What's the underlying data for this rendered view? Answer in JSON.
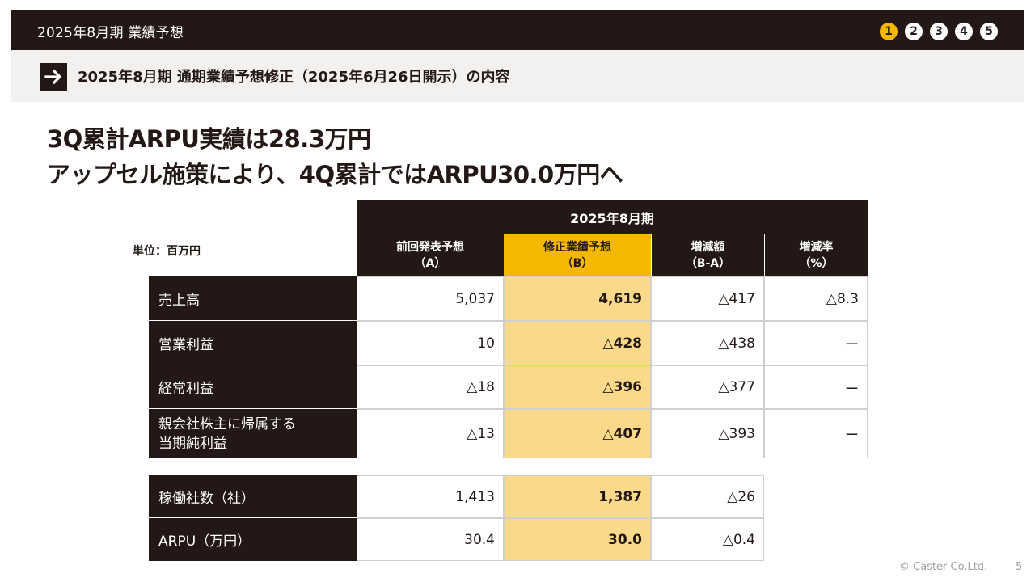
{
  "header": {
    "title": "2025年8月期 業績予想",
    "steps": [
      "1",
      "2",
      "3",
      "4",
      "5"
    ],
    "active_step": "1",
    "accent_color": "#f5b800",
    "dark_color": "#231815"
  },
  "section": {
    "icon": "arrow-right-icon",
    "title": "2025年8月期 通期業績予想修正（2025年6月26日開示）の内容"
  },
  "headline": {
    "line1": "3Q累計ARPU実績は28.3万円",
    "line2": "アップセル施策により、4Q累計ではARPU30.0万円へ"
  },
  "table": {
    "unit": "単位：百万円",
    "period_header": "2025年8月期",
    "columns": [
      {
        "line1": "前回発表予想",
        "line2": "（A）"
      },
      {
        "line1": "修正業績予想",
        "line2": "（B）"
      },
      {
        "line1": "増減額",
        "line2": "（B-A）"
      },
      {
        "line1": "増減率",
        "line2": "（%）"
      }
    ],
    "rows": [
      {
        "label": "売上高",
        "values": [
          "5,037",
          "4,619",
          "△417",
          "△8.3"
        ]
      },
      {
        "label": "営業利益",
        "values": [
          "10",
          "△428",
          "△438",
          "ー"
        ]
      },
      {
        "label": "経常利益",
        "values": [
          "△18",
          "△396",
          "△377",
          "ー"
        ]
      },
      {
        "label_line1": "親会社株主に帰属する",
        "label_line2": "当期純利益",
        "values": [
          "△13",
          "△407",
          "△393",
          "ー"
        ]
      }
    ],
    "kpi_rows": [
      {
        "label": "稼働社数（社）",
        "values": [
          "1,413",
          "1,387",
          "△26"
        ]
      },
      {
        "label": "ARPU（万円）",
        "values": [
          "30.4",
          "30.0",
          "△0.4"
        ]
      }
    ]
  },
  "footer": {
    "copyright": "© Caster Co.Ltd.",
    "page": "5"
  }
}
